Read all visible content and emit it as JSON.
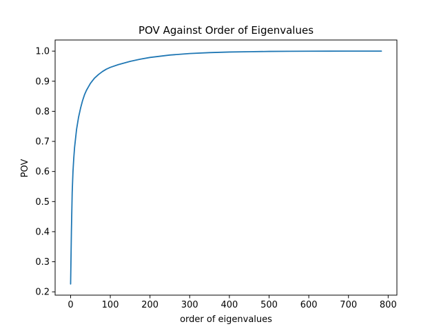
{
  "chart_data": {
    "type": "line",
    "title": "POV Against Order of Eigenvalues",
    "xlabel": "order of eigenvalues",
    "ylabel": "POV",
    "xlim": [
      -39,
      822
    ],
    "ylim": [
      0.189,
      1.037
    ],
    "xticks": [
      0,
      100,
      200,
      300,
      400,
      500,
      600,
      700,
      800
    ],
    "yticks": [
      0.2,
      0.3,
      0.4,
      0.5,
      0.6,
      0.7,
      0.8,
      0.9,
      1.0
    ],
    "xtick_labels": [
      "0",
      "100",
      "200",
      "300",
      "400",
      "500",
      "600",
      "700",
      "800"
    ],
    "ytick_labels": [
      "0.2",
      "0.3",
      "0.4",
      "0.5",
      "0.6",
      "0.7",
      "0.8",
      "0.9",
      "1.0"
    ],
    "grid": false,
    "legend": "none",
    "colors": {
      "line": "#1f77b4",
      "axes": "#000000",
      "background": "#ffffff"
    },
    "series": [
      {
        "x": [
          0,
          2,
          4,
          6,
          8,
          10,
          15,
          20,
          25,
          30,
          35,
          40,
          50,
          60,
          70,
          80,
          90,
          100,
          120,
          150,
          175,
          200,
          250,
          300,
          350,
          400,
          450,
          500,
          550,
          600,
          650,
          700,
          750,
          783
        ],
        "y": [
          0.226,
          0.4,
          0.53,
          0.6,
          0.645,
          0.68,
          0.74,
          0.78,
          0.81,
          0.835,
          0.855,
          0.87,
          0.893,
          0.91,
          0.922,
          0.932,
          0.94,
          0.946,
          0.955,
          0.966,
          0.973,
          0.979,
          0.987,
          0.992,
          0.995,
          0.997,
          0.998,
          0.999,
          0.9995,
          0.9998,
          0.9999,
          1.0,
          1.0,
          1.0
        ]
      }
    ]
  }
}
